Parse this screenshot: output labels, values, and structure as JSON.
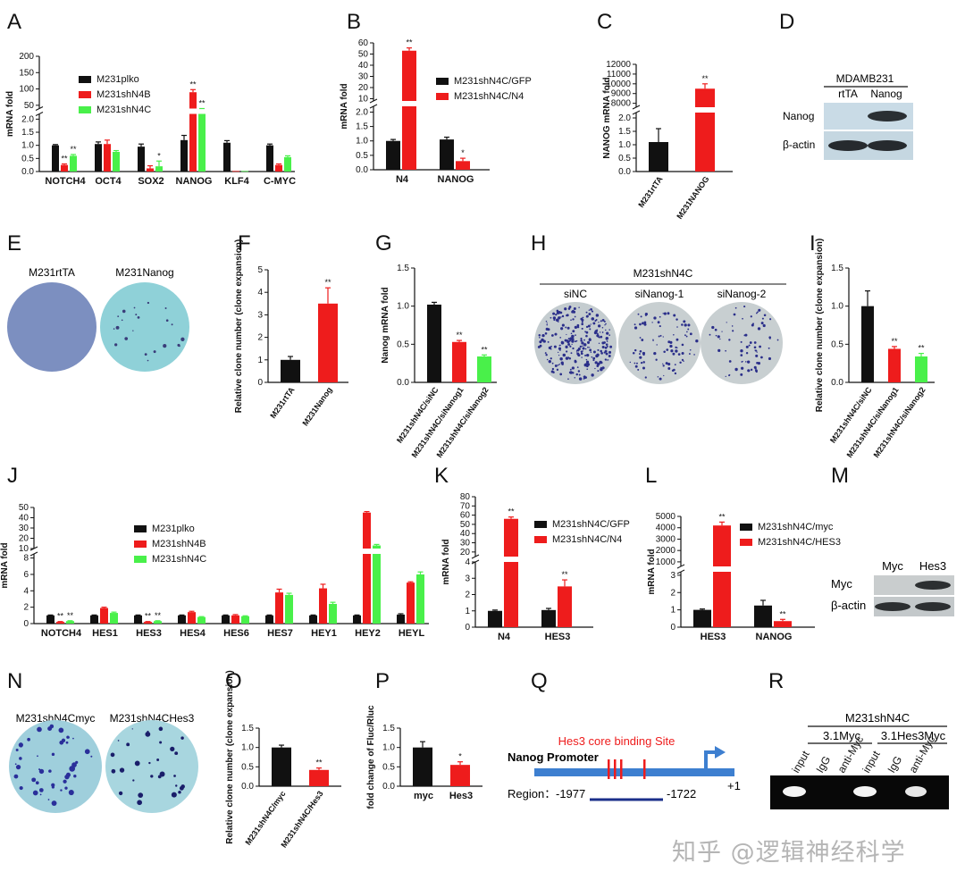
{
  "figure": {
    "watermark": "知乎 @逻辑神经科学",
    "colors": {
      "black": "#111111",
      "red": "#ee1c1c",
      "green": "#49f04a",
      "blue": "#1e4fb0",
      "gray": "#222222"
    }
  },
  "panels": [
    {
      "id": "A",
      "kind": "bar",
      "label": "A",
      "ylabel": "mRNA fold",
      "categories": [
        "NOTCH4",
        "OCT4",
        "SOX2",
        "NANOG",
        "KLF4",
        "C-MYC"
      ],
      "series": [
        {
          "name": "M231plko",
          "color": "#111111",
          "values": [
            1.0,
            1.05,
            0.95,
            1.2,
            1.1,
            1.0
          ],
          "errors": [
            0.03,
            0.08,
            0.1,
            0.18,
            0.08,
            0.05
          ],
          "stars": [
            "",
            "",
            "",
            "",
            "",
            ""
          ]
        },
        {
          "name": "M231shN4B",
          "color": "#ee1c1c",
          "values": [
            0.25,
            1.05,
            0.12,
            90,
            0.02,
            0.25
          ],
          "errors": [
            0.04,
            0.15,
            0.1,
            8,
            0,
            0.04
          ],
          "stars": [
            "**",
            "",
            "",
            "**",
            "",
            ""
          ]
        },
        {
          "name": "M231shN4C",
          "color": "#49f04a",
          "values": [
            0.6,
            0.75,
            0.2,
            25,
            0.02,
            0.55
          ],
          "errors": [
            0.05,
            0.05,
            0.2,
            3,
            0,
            0.05
          ],
          "stars": [
            "**",
            "",
            "*",
            "**",
            "",
            ""
          ]
        }
      ],
      "ticks_upper": [
        50,
        100,
        150,
        200
      ],
      "ticks_lower": [
        0.0,
        0.5,
        1.0,
        1.5,
        2.0
      ],
      "tick_labels_upper": [
        "50",
        "100",
        "150",
        "200"
      ],
      "tick_labels_lower": [
        "0.0",
        "0.5",
        "1.0",
        "1.5",
        "2.0"
      ],
      "break": {
        "low": 2.2,
        "high": 40,
        "max": 200
      },
      "legend": "top-left"
    },
    {
      "id": "B",
      "kind": "bar",
      "label": "B",
      "ylabel": "mRNA fold",
      "categories": [
        "N4",
        "NANOG"
      ],
      "series": [
        {
          "name": "M231shN4C/GFP",
          "color": "#111111",
          "values": [
            1.0,
            1.05
          ],
          "errors": [
            0.05,
            0.08
          ],
          "stars": [
            "",
            ""
          ]
        },
        {
          "name": "M231shN4C/N4",
          "color": "#ee1c1c",
          "values": [
            53,
            0.3
          ],
          "errors": [
            2.5,
            0.1
          ],
          "stars": [
            "**",
            "*"
          ]
        }
      ],
      "ticks_upper": [
        10,
        20,
        30,
        40,
        50,
        60
      ],
      "ticks_lower": [
        0.0,
        0.5,
        1.0,
        1.5,
        2.0
      ],
      "tick_labels_upper": [
        "10",
        "20",
        "30",
        "40",
        "50",
        "60"
      ],
      "tick_labels_lower": [
        "0.0",
        "0.5",
        "1.0",
        "1.5",
        "2.0"
      ],
      "break": {
        "low": 2.2,
        "high": 8,
        "max": 60
      },
      "legend": "top-right"
    },
    {
      "id": "C",
      "kind": "bar",
      "label": "C",
      "ylabel": "NANOG mRNA fold",
      "categories": [
        "M231rtTA",
        "M231NANOG"
      ],
      "series": [
        {
          "name": "",
          "color": "#111111",
          "values": [
            1.1,
            9500
          ],
          "errors": [
            0.5,
            500
          ],
          "stars": [
            "",
            "**"
          ],
          "colors": [
            "#111111",
            "#ee1c1c"
          ]
        }
      ],
      "ticks_upper": [
        8000,
        9000,
        10000,
        11000,
        12000
      ],
      "ticks_lower": [
        0.0,
        0.5,
        1.0,
        1.5,
        2.0
      ],
      "tick_labels_upper": [
        "8000",
        "9000",
        "10000",
        "11000",
        "12000"
      ],
      "tick_labels_lower": [
        "0.0",
        "0.5",
        "1.0",
        "1.5",
        "2.0"
      ],
      "break": {
        "low": 2.2,
        "high": 7600,
        "max": 12000
      },
      "rotated_cats": true
    },
    {
      "id": "F",
      "kind": "bar",
      "label": "F",
      "ylabel": "Relative clone number (clone expansion)",
      "categories": [
        "M231rtTA",
        "M231Nanog"
      ],
      "series": [
        {
          "name": "",
          "values": [
            1.0,
            3.5
          ],
          "errors": [
            0.15,
            0.7
          ],
          "stars": [
            "",
            "**"
          ],
          "colors": [
            "#111111",
            "#ee1c1c"
          ]
        }
      ],
      "ticks": [
        0,
        1,
        2,
        3,
        4,
        5
      ],
      "tick_labels": [
        "0",
        "1",
        "2",
        "3",
        "4",
        "5"
      ],
      "max": 5,
      "rotated_cats": true
    },
    {
      "id": "G",
      "kind": "bar",
      "label": "G",
      "ylabel": "Nanog mRNA fold",
      "categories": [
        "M231shN4C/siNC",
        "M231shN4C/siNanog1",
        "M231shN4C/siNanog2"
      ],
      "series": [
        {
          "name": "",
          "values": [
            1.02,
            0.53,
            0.34
          ],
          "errors": [
            0.03,
            0.02,
            0.02
          ],
          "stars": [
            "",
            "**",
            "**"
          ],
          "colors": [
            "#111111",
            "#ee1c1c",
            "#49f04a"
          ]
        }
      ],
      "ticks": [
        0.0,
        0.5,
        1.0,
        1.5
      ],
      "tick_labels": [
        "0.0",
        "0.5",
        "1.0",
        "1.5"
      ],
      "max": 1.5,
      "rotated_cats": true
    },
    {
      "id": "I",
      "kind": "bar",
      "label": "I",
      "ylabel": "Relative clone number (clone expansion)",
      "categories": [
        "M231shN4C/siNC",
        "M231shN4C/siNanog1",
        "M231shN4C/siNanog2"
      ],
      "series": [
        {
          "name": "",
          "values": [
            1.0,
            0.44,
            0.34
          ],
          "errors": [
            0.2,
            0.03,
            0.04
          ],
          "stars": [
            "",
            "**",
            "**"
          ],
          "colors": [
            "#111111",
            "#ee1c1c",
            "#49f04a"
          ]
        }
      ],
      "ticks": [
        0.0,
        0.5,
        1.0,
        1.5
      ],
      "tick_labels": [
        "0.0",
        "0.5",
        "1.0",
        "1.5"
      ],
      "max": 1.5,
      "rotated_cats": true
    },
    {
      "id": "J",
      "kind": "bar",
      "label": "J",
      "ylabel": "mRNA fold",
      "categories": [
        "NOTCH4",
        "HES1",
        "HES3",
        "HES4",
        "HES6",
        "HES7",
        "HEY1",
        "HEY2",
        "HEYL"
      ],
      "series": [
        {
          "name": "M231plko",
          "color": "#111111",
          "values": [
            1,
            1,
            1,
            1,
            1,
            1,
            1,
            1,
            1.1
          ],
          "errors": [
            0.05,
            0.05,
            0.05,
            0.05,
            0.05,
            0.05,
            0.05,
            0.05,
            0.1
          ],
          "stars": [
            "",
            "",
            "",
            "",
            "",
            "",
            "",
            "",
            ""
          ]
        },
        {
          "name": "M231shN4B",
          "color": "#ee1c1c",
          "values": [
            0.2,
            1.9,
            0.2,
            1.4,
            1.0,
            3.8,
            4.3,
            45,
            5
          ],
          "errors": [
            0.05,
            0.1,
            0.05,
            0.1,
            0.1,
            0.4,
            0.5,
            1,
            0.1
          ],
          "stars": [
            "**",
            "",
            "**",
            "",
            "",
            "",
            "",
            "",
            ""
          ]
        },
        {
          "name": "M231shN4C",
          "color": "#49f04a",
          "values": [
            0.3,
            1.3,
            0.3,
            0.8,
            0.9,
            3.5,
            2.4,
            13,
            6
          ],
          "errors": [
            0.05,
            0.1,
            0.05,
            0.05,
            0.05,
            0.2,
            0.2,
            1,
            0.3
          ],
          "stars": [
            "**",
            "",
            "**",
            "",
            "",
            "",
            "",
            "",
            ""
          ]
        }
      ],
      "ticks_upper": [
        10,
        20,
        30,
        40,
        50
      ],
      "ticks_lower": [
        0,
        2,
        4,
        6,
        8
      ],
      "tick_labels_upper": [
        "10",
        "20",
        "30",
        "40",
        "50"
      ],
      "tick_labels_lower": [
        "0",
        "2",
        "4",
        "6",
        "8"
      ],
      "break": {
        "low": 8.5,
        "high": 10,
        "max": 50
      },
      "legend": "middle-left"
    },
    {
      "id": "K",
      "kind": "bar",
      "label": "K",
      "ylabel": "mRNA fold",
      "categories": [
        "N4",
        "HES3"
      ],
      "series": [
        {
          "name": "M231shN4C/GFP",
          "color": "#111111",
          "values": [
            1.0,
            1.05
          ],
          "errors": [
            0.05,
            0.1
          ],
          "stars": [
            "",
            ""
          ]
        },
        {
          "name": "M231shN4C/N4",
          "color": "#ee1c1c",
          "values": [
            56,
            2.5
          ],
          "errors": [
            2,
            0.4
          ],
          "stars": [
            "**",
            "**"
          ]
        }
      ],
      "ticks_upper": [
        20,
        30,
        40,
        50,
        60,
        70,
        80
      ],
      "ticks_lower": [
        0,
        1,
        2,
        3,
        4
      ],
      "tick_labels_upper": [
        "20",
        "30",
        "40",
        "50",
        "60",
        "70",
        "80"
      ],
      "tick_labels_lower": [
        "0",
        "1",
        "2",
        "3",
        "4"
      ],
      "break": {
        "low": 4,
        "high": 15,
        "max": 80
      },
      "legend": "top-right"
    },
    {
      "id": "L",
      "kind": "bar",
      "label": "L",
      "ylabel": "mRNA fold",
      "categories": [
        "HES3",
        "NANOG"
      ],
      "series": [
        {
          "name": "M231shN4C/myc",
          "color": "#111111",
          "values": [
            1.0,
            1.25
          ],
          "errors": [
            0.05,
            0.3
          ],
          "stars": [
            "",
            ""
          ]
        },
        {
          "name": "M231shN4C/HES3",
          "color": "#ee1c1c",
          "values": [
            4200,
            0.35
          ],
          "errors": [
            300,
            0.1
          ],
          "stars": [
            "**",
            "**"
          ]
        }
      ],
      "ticks_upper": [
        1000,
        2000,
        3000,
        4000,
        5000
      ],
      "ticks_lower": [
        0,
        1,
        2,
        3
      ],
      "tick_labels_upper": [
        "1000",
        "2000",
        "3000",
        "4000",
        "5000"
      ],
      "tick_labels_lower": [
        "0",
        "1",
        "2",
        "3"
      ],
      "break": {
        "low": 3.2,
        "high": 600,
        "max": 5000
      },
      "legend": "top-right"
    },
    {
      "id": "O",
      "kind": "bar",
      "label": "O",
      "ylabel": "Relative clone number (clone expansion)",
      "categories": [
        "M231shN4C/myc",
        "M231shN4C/Hes3"
      ],
      "series": [
        {
          "name": "",
          "values": [
            1.0,
            0.42
          ],
          "errors": [
            0.06,
            0.05
          ],
          "stars": [
            "",
            "**"
          ],
          "colors": [
            "#111111",
            "#ee1c1c"
          ]
        }
      ],
      "ticks": [
        0.0,
        0.5,
        1.0,
        1.5
      ],
      "tick_labels": [
        "0.0",
        "0.5",
        "1.0",
        "1.5"
      ],
      "max": 1.5,
      "rotated_cats": true
    },
    {
      "id": "P",
      "kind": "bar",
      "label": "P",
      "ylabel": "fold change of Fluc/Rluc",
      "categories": [
        "myc",
        "Hes3"
      ],
      "series": [
        {
          "name": "",
          "values": [
            1.0,
            0.55
          ],
          "errors": [
            0.15,
            0.08
          ],
          "stars": [
            "",
            "*"
          ],
          "colors": [
            "#111111",
            "#ee1c1c"
          ]
        }
      ],
      "ticks": [
        0.0,
        0.5,
        1.0,
        1.5
      ],
      "tick_labels": [
        "0.0",
        "0.5",
        "1.0",
        "1.5"
      ],
      "max": 1.5
    }
  ],
  "panel_D": {
    "label": "D",
    "cell_line": "MDAMB231",
    "lanes": [
      "rtTA",
      "Nanog"
    ],
    "rows": [
      "Nanog",
      "β-actin"
    ]
  },
  "panel_E": {
    "label": "E",
    "plates": [
      "M231rtTA",
      "M231Nanog"
    ]
  },
  "panel_H": {
    "label": "H",
    "group": "M231shN4C",
    "plates": [
      "siNC",
      "siNanog-1",
      "siNanog-2"
    ]
  },
  "panel_M": {
    "label": "M",
    "lanes": [
      "Myc",
      "Hes3"
    ],
    "rows": [
      "Myc",
      "β-actin"
    ]
  },
  "panel_N": {
    "label": "N",
    "plates": [
      "M231shN4Cmyc",
      "M231shN4CHes3"
    ]
  },
  "panel_Q": {
    "label": "Q",
    "title": "Hes3 core binding Site",
    "promoter": "Nanog Promoter",
    "region_label": "Region：",
    "start": "-1977",
    "end": "-1722",
    "tss": "+1"
  },
  "panel_R": {
    "label": "R",
    "group": "M231shN4C",
    "sub1": "3.1Myc",
    "sub2": "3.1Hes3Myc",
    "lanes": [
      "input",
      "IgG",
      "anti-Myc",
      "input",
      "IgG",
      "anti-Myc"
    ]
  }
}
